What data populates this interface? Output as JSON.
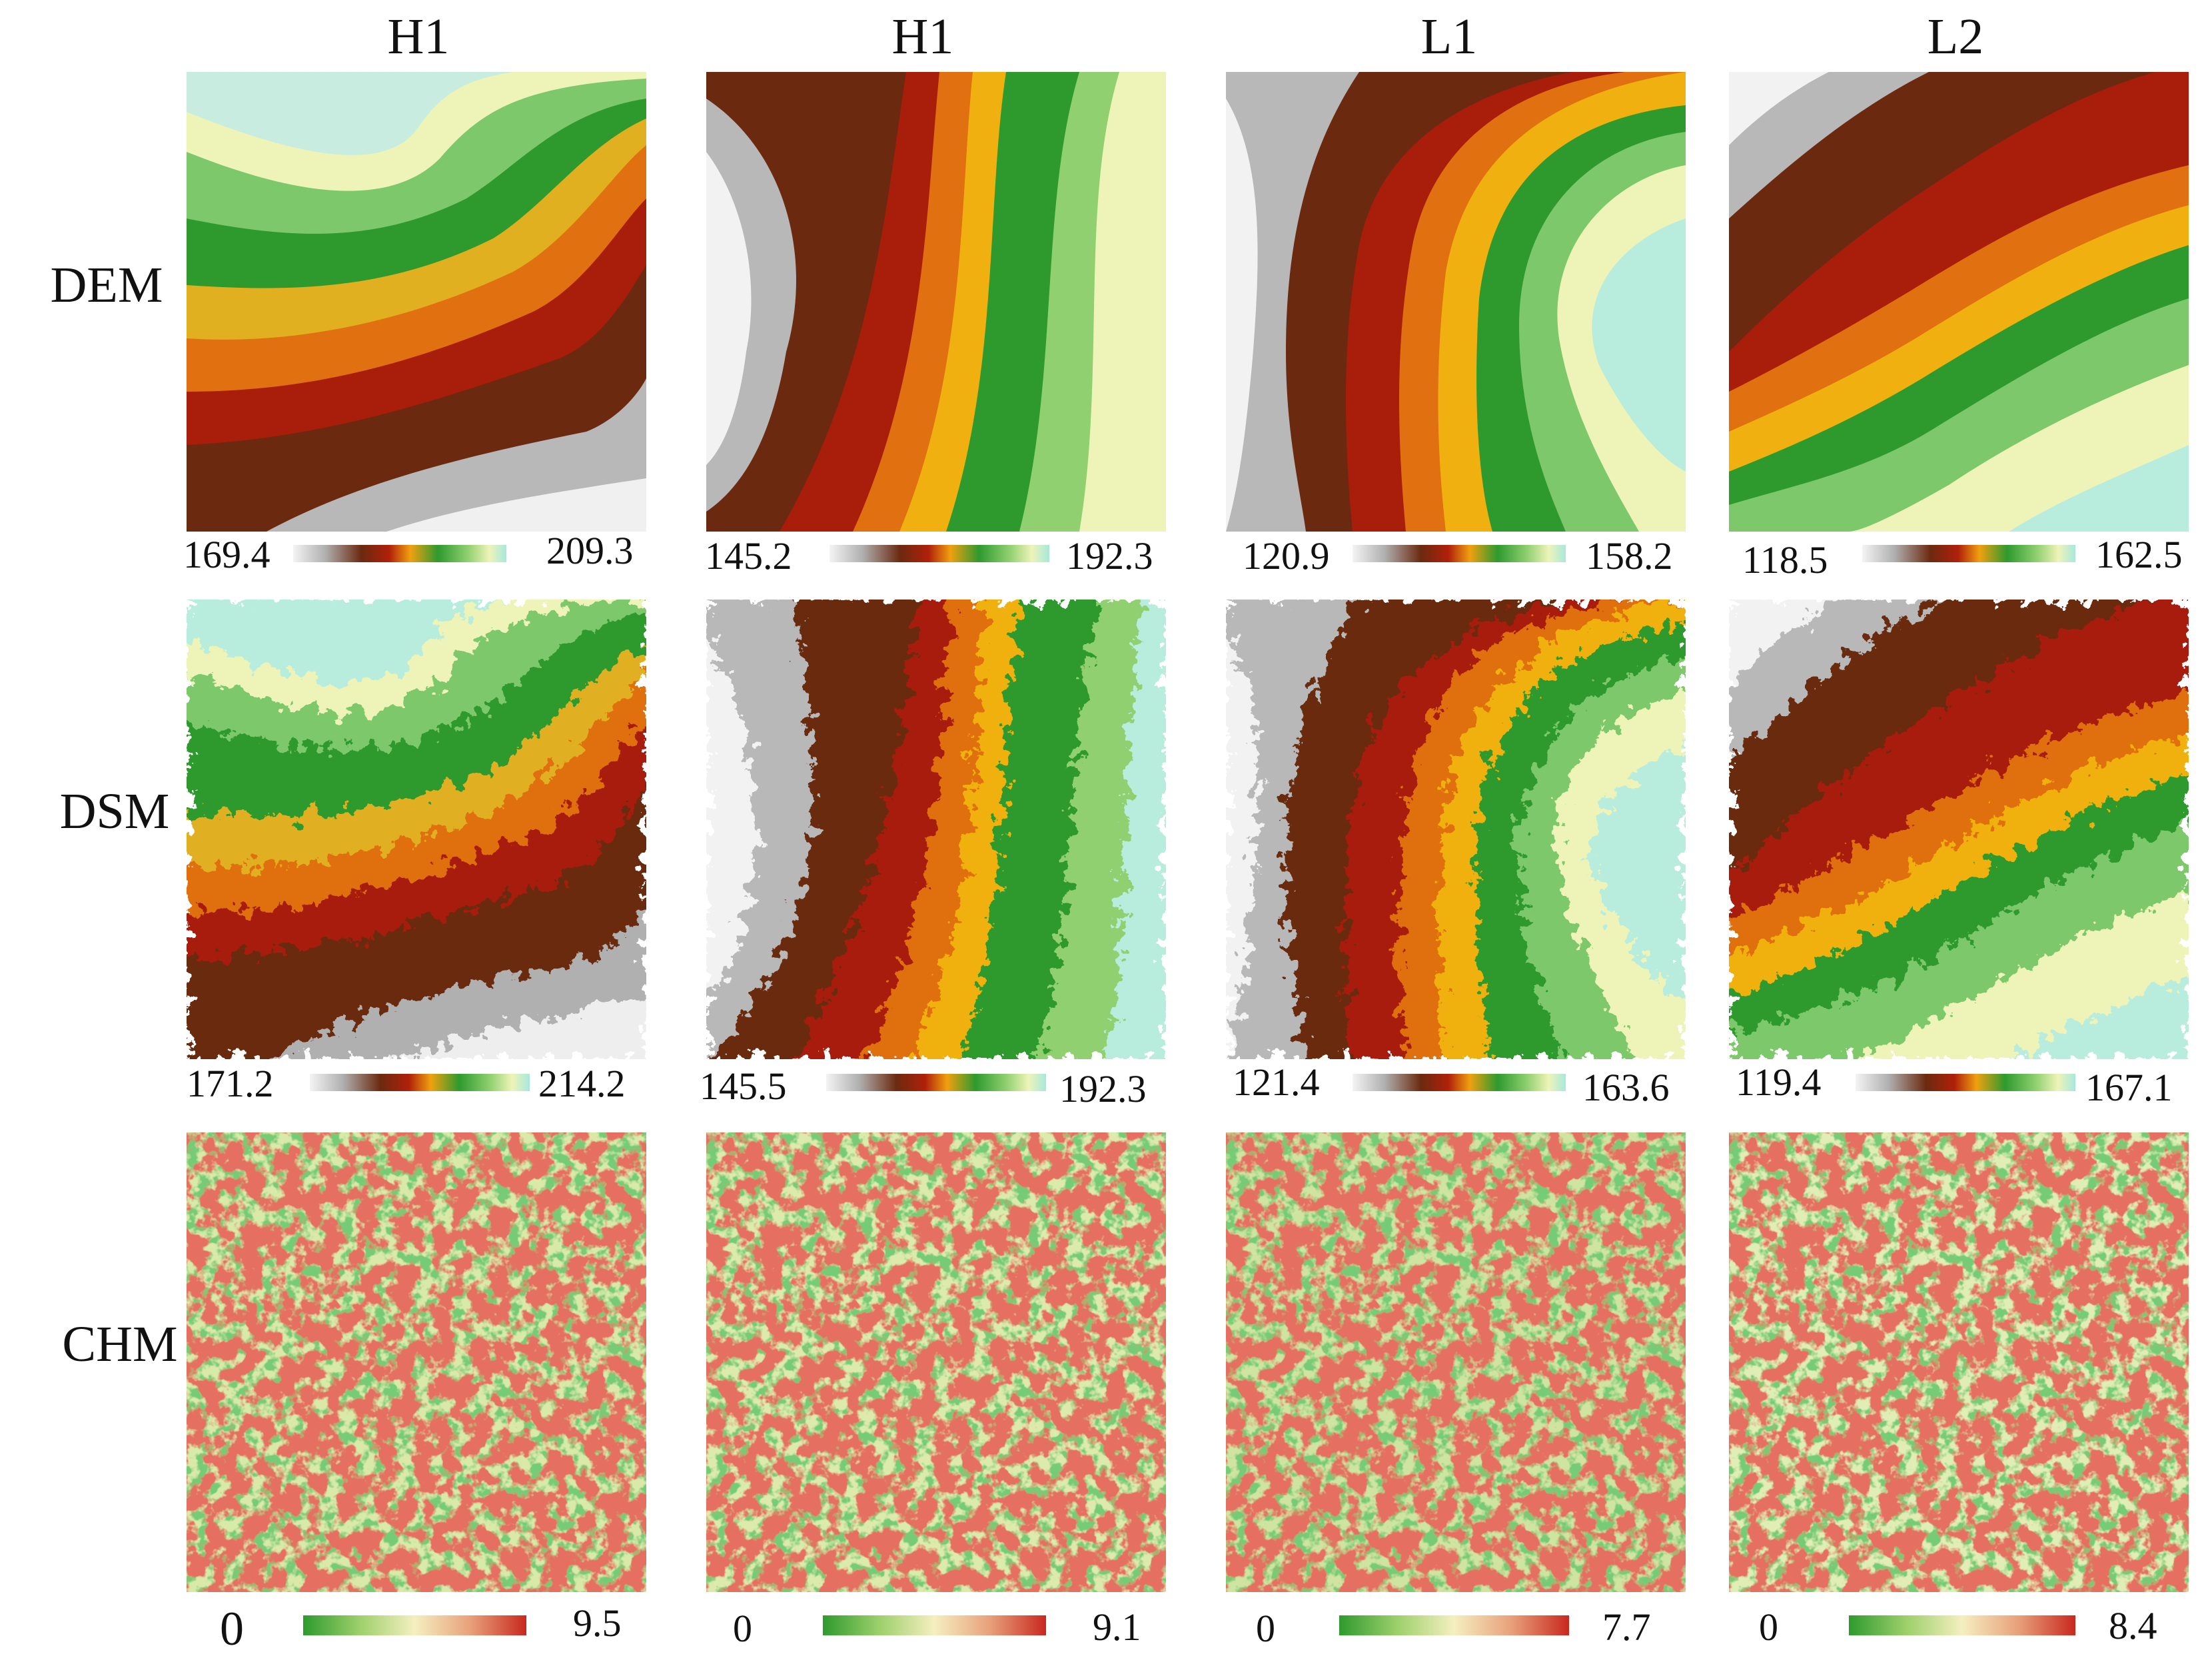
{
  "columns": [
    "H1",
    "H1",
    "L1",
    "L2"
  ],
  "rows": [
    "DEM",
    "DSM",
    "CHM"
  ],
  "scales": {
    "dem": [
      {
        "min": "169.4",
        "max": "209.3"
      },
      {
        "min": "145.2",
        "max": "192.3"
      },
      {
        "min": "120.9",
        "max": "158.2"
      },
      {
        "min": "118.5",
        "max": "162.5"
      }
    ],
    "dsm": [
      {
        "min": "171.2",
        "max": "214.2"
      },
      {
        "min": "145.5",
        "max": "192.3"
      },
      {
        "min": "121.4",
        "max": "163.6"
      },
      {
        "min": "119.4",
        "max": "167.1"
      }
    ],
    "chm": [
      {
        "min": "0",
        "max": "9.5"
      },
      {
        "min": "0",
        "max": "9.1"
      },
      {
        "min": "0",
        "max": "7.7"
      },
      {
        "min": "0",
        "max": "8.4"
      }
    ]
  },
  "colors": {
    "elevation_ramp": [
      "#f2f2f2",
      "#b8b8b8",
      "#7a3a1e",
      "#6b2a10",
      "#a81e0a",
      "#e0700a",
      "#f5b60a",
      "#2e9a2e",
      "#7cc86a",
      "#e8f2b8",
      "#a8e8dc"
    ],
    "chm_ramp": [
      "#2e9a2e",
      "#9ccf6a",
      "#f5efc0",
      "#e8a07a",
      "#c8281e"
    ]
  }
}
